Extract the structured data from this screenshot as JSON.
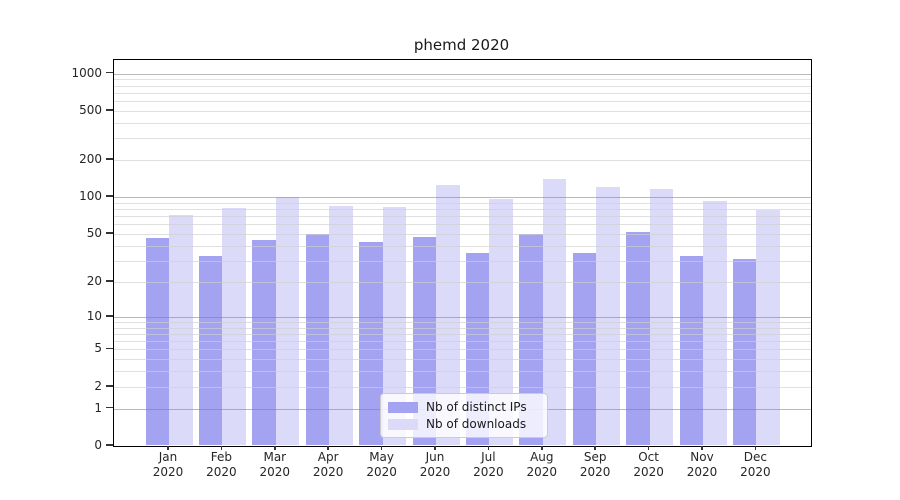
{
  "page": {
    "background": "#ffffff"
  },
  "chart_data": {
    "type": "bar",
    "title": "phemd 2020",
    "categories": [
      "Jan",
      "Feb",
      "Mar",
      "Apr",
      "May",
      "Jun",
      "Jul",
      "Aug",
      "Sep",
      "Oct",
      "Nov",
      "Dec"
    ],
    "x_year_label": "2020",
    "series": [
      {
        "name": "Nb of distinct IPs",
        "color": "#a3a3f2",
        "values": [
          46,
          33,
          45,
          50,
          43,
          47,
          35,
          50,
          35,
          52,
          33,
          31
        ]
      },
      {
        "name": "Nb of downloads",
        "color": "#dbdbf9",
        "values": [
          71,
          81,
          100,
          85,
          83,
          125,
          97,
          140,
          121,
          117,
          93,
          79
        ]
      }
    ],
    "yscale": "log1p",
    "yticks": [
      1000,
      500,
      200,
      100,
      50,
      20,
      10,
      5,
      2,
      1,
      0
    ],
    "ylim": [
      0,
      1276
    ],
    "grid": {
      "major_lines": [
        1,
        10,
        100,
        1000
      ],
      "minor_multipliers": [
        2,
        3,
        4,
        5,
        6,
        7,
        8,
        9
      ],
      "minor_decades": [
        1,
        10,
        100
      ],
      "major_color": "#b3b3b3",
      "minor_color": "#e4e4e4"
    },
    "legend_position": "inside-bottom-center",
    "xlabel": "",
    "ylabel": ""
  },
  "colors": {
    "spine": "#000000",
    "tick_text": "#262626",
    "title_text": "#1a1a1a"
  }
}
